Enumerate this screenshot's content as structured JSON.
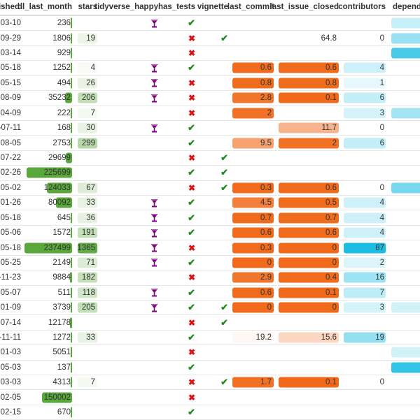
{
  "headers": {
    "published": "published",
    "dl_last_month": "dl_last_month",
    "stars": "stars",
    "tidyverse_happy": "tidyverse_happy",
    "has_tests": "has_tests",
    "vignette": "vignette",
    "last_commit": "last_commit",
    "last_issue_closed": "last_issue_closed",
    "contributors": "contributors",
    "depends": "depends"
  },
  "colors": {
    "dl_bar": "#5aa73c",
    "stars": "#5aa73c",
    "orange": "#f06a1a",
    "cyan": "#1bbde2",
    "check": "#228b22",
    "cross": "#e01010",
    "happy": "#800080"
  },
  "icons": {
    "happy": "cocktail-glass-icon",
    "yes": "check-icon",
    "no": "cross-icon"
  },
  "rows": [
    {
      "published": "-03-10",
      "dl": "236",
      "stars": "",
      "happy": true,
      "tests": true,
      "vignette": false,
      "last_commit": "",
      "last_issue_closed": "",
      "contributors": "",
      "depends_level": 0.25
    },
    {
      "published": "-09-29",
      "dl": "1806",
      "stars": "19",
      "happy": false,
      "tests": false,
      "vignette": true,
      "last_commit": "",
      "last_issue_closed": "64.8",
      "contributors": "0",
      "depends_level": 0.45
    },
    {
      "published": "-03-14",
      "dl": "929",
      "stars": "",
      "happy": false,
      "tests": false,
      "vignette": false,
      "last_commit": "",
      "last_issue_closed": "",
      "contributors": "",
      "depends_level": 0.8
    },
    {
      "published": "-05-18",
      "dl": "1252",
      "stars": "4",
      "happy": true,
      "tests": true,
      "vignette": false,
      "last_commit": "0.6",
      "last_issue_closed": "0.6",
      "contributors": "4",
      "depends_level": 0
    },
    {
      "published": "-05-15",
      "dl": "494",
      "stars": "26",
      "happy": true,
      "tests": false,
      "vignette": false,
      "last_commit": "0.8",
      "last_issue_closed": "0.8",
      "contributors": "1",
      "depends_level": 0
    },
    {
      "published": "-08-09",
      "dl": "35232",
      "stars": "206",
      "happy": true,
      "tests": false,
      "vignette": false,
      "last_commit": "2.8",
      "last_issue_closed": "0.1",
      "contributors": "6",
      "depends_level": 0
    },
    {
      "published": "-04-09",
      "dl": "222",
      "stars": "7",
      "happy": false,
      "tests": false,
      "vignette": false,
      "last_commit": "2",
      "last_issue_closed": "",
      "contributors": "3",
      "depends_level": 0.4
    },
    {
      "published": "-07-11",
      "dl": "168",
      "stars": "30",
      "happy": true,
      "tests": true,
      "vignette": false,
      "last_commit": "",
      "last_issue_closed": "11.7",
      "contributors": "0",
      "depends_level": 0
    },
    {
      "published": "-08-05",
      "dl": "2753",
      "stars": "299",
      "happy": false,
      "tests": true,
      "vignette": false,
      "last_commit": "9.5",
      "last_issue_closed": "2",
      "contributors": "6",
      "depends_level": 0
    },
    {
      "published": "-07-22",
      "dl": "29699",
      "stars": "",
      "happy": false,
      "tests": false,
      "vignette": true,
      "last_commit": "",
      "last_issue_closed": "",
      "contributors": "",
      "depends_level": 0
    },
    {
      "published": "-02-26",
      "dl": "225699",
      "stars": "",
      "happy": false,
      "tests": true,
      "vignette": true,
      "last_commit": "",
      "last_issue_closed": "",
      "contributors": "",
      "depends_level": 0
    },
    {
      "published": "-05-02",
      "dl": "124033",
      "stars": "67",
      "happy": false,
      "tests": false,
      "vignette": true,
      "last_commit": "0.3",
      "last_issue_closed": "0.6",
      "contributors": "0",
      "depends_level": 0.6
    },
    {
      "published": "-01-26",
      "dl": "80092",
      "stars": "33",
      "happy": true,
      "tests": true,
      "vignette": false,
      "last_commit": "4.5",
      "last_issue_closed": "0.5",
      "contributors": "4",
      "depends_level": 0
    },
    {
      "published": "-05-18",
      "dl": "645",
      "stars": "36",
      "happy": true,
      "tests": true,
      "vignette": false,
      "last_commit": "0.7",
      "last_issue_closed": "0.7",
      "contributors": "4",
      "depends_level": 0
    },
    {
      "published": "-05-06",
      "dl": "1572",
      "stars": "191",
      "happy": true,
      "tests": true,
      "vignette": false,
      "last_commit": "0.6",
      "last_issue_closed": "0.6",
      "contributors": "4",
      "depends_level": 0
    },
    {
      "published": "-05-18",
      "dl": "237499",
      "stars": "1365",
      "happy": true,
      "tests": false,
      "vignette": false,
      "last_commit": "0.3",
      "last_issue_closed": "0",
      "contributors": "87",
      "depends_level": 0
    },
    {
      "published": "-05-25",
      "dl": "2149",
      "stars": "71",
      "happy": true,
      "tests": true,
      "vignette": false,
      "last_commit": "0",
      "last_issue_closed": "0",
      "contributors": "2",
      "depends_level": 0
    },
    {
      "published": "-11-23",
      "dl": "9884",
      "stars": "182",
      "happy": false,
      "tests": false,
      "vignette": false,
      "last_commit": "2.9",
      "last_issue_closed": "0.4",
      "contributors": "16",
      "depends_level": 0
    },
    {
      "published": "-05-07",
      "dl": "511",
      "stars": "118",
      "happy": true,
      "tests": true,
      "vignette": false,
      "last_commit": "0.6",
      "last_issue_closed": "0.1",
      "contributors": "7",
      "depends_level": 0
    },
    {
      "published": "-01-09",
      "dl": "3739",
      "stars": "205",
      "happy": true,
      "tests": true,
      "vignette": true,
      "last_commit": "0",
      "last_issue_closed": "0",
      "contributors": "3",
      "depends_level": 0.2
    },
    {
      "published": "-07-14",
      "dl": "12178",
      "stars": "",
      "happy": false,
      "tests": false,
      "vignette": true,
      "last_commit": "",
      "last_issue_closed": "",
      "contributors": "",
      "depends_level": 0
    },
    {
      "published": "-11-11",
      "dl": "1272",
      "stars": "33",
      "happy": false,
      "tests": true,
      "vignette": false,
      "last_commit": "19.2",
      "last_issue_closed": "15.6",
      "contributors": "19",
      "depends_level": 0
    },
    {
      "published": "-01-03",
      "dl": "5051",
      "stars": "",
      "happy": false,
      "tests": false,
      "vignette": false,
      "last_commit": "",
      "last_issue_closed": "",
      "contributors": "",
      "depends_level": 0.2
    },
    {
      "published": "-05-03",
      "dl": "137",
      "stars": "",
      "happy": false,
      "tests": true,
      "vignette": false,
      "last_commit": "",
      "last_issue_closed": "",
      "contributors": "",
      "depends_level": 0.9
    },
    {
      "published": "-03-03",
      "dl": "4313",
      "stars": "7",
      "happy": false,
      "tests": false,
      "vignette": true,
      "last_commit": "1.7",
      "last_issue_closed": "0.1",
      "contributors": "0",
      "depends_level": 0
    },
    {
      "published": "-02-05",
      "dl": "150002",
      "stars": "",
      "happy": false,
      "tests": false,
      "vignette": false,
      "last_commit": "",
      "last_issue_closed": "",
      "contributors": "",
      "depends_level": 0
    },
    {
      "published": "-02-15",
      "dl": "670",
      "stars": "",
      "happy": false,
      "tests": true,
      "vignette": false,
      "last_commit": "",
      "last_issue_closed": "",
      "contributors": "",
      "depends_level": 0
    }
  ]
}
